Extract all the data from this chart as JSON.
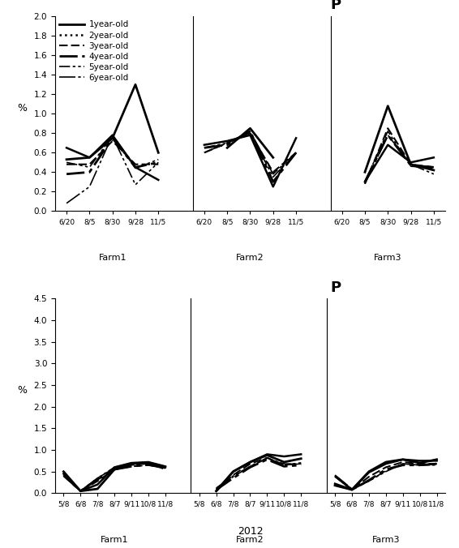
{
  "top_chart": {
    "title": "P",
    "ylabel": "%",
    "ylim": [
      0,
      2.0
    ],
    "yticks": [
      0,
      0.2,
      0.4,
      0.6,
      0.8,
      1.0,
      1.2,
      1.4,
      1.6,
      1.8,
      2.0
    ],
    "farms": [
      "Farm1",
      "Farm2",
      "Farm3"
    ],
    "xtick_labels": [
      "6/20",
      "8/5",
      "8/30",
      "9/28",
      "11/5"
    ],
    "series": [
      {
        "label": "1year-old",
        "farm1": [
          0.53,
          0.55,
          0.75,
          1.3,
          0.6
        ],
        "farm2": [
          null,
          0.65,
          0.85,
          0.55,
          null
        ],
        "farm3": [
          null,
          0.4,
          1.08,
          0.48,
          0.42
        ]
      },
      {
        "label": "2year-old",
        "farm1": [
          0.65,
          0.55,
          0.78,
          0.45,
          0.32
        ],
        "farm2": [
          0.68,
          0.72,
          0.78,
          0.25,
          0.75
        ],
        "farm3": [
          null,
          0.3,
          0.68,
          0.5,
          0.55
        ]
      },
      {
        "label": "3year-old",
        "farm1": [
          0.48,
          0.48,
          0.72,
          0.48,
          0.48
        ],
        "farm2": [
          0.6,
          0.7,
          0.8,
          0.4,
          0.6
        ],
        "farm3": [
          null,
          0.28,
          0.85,
          0.48,
          0.45
        ]
      },
      {
        "label": "4year-old",
        "farm1": [
          0.38,
          0.4,
          0.75,
          0.45,
          0.5
        ],
        "farm2": [
          0.65,
          0.68,
          0.82,
          0.3,
          0.6
        ],
        "farm3": [
          null,
          0.3,
          0.78,
          0.47,
          0.45
        ]
      },
      {
        "label": "5year-old",
        "farm1": [
          0.5,
          0.45,
          0.77,
          0.27,
          0.5
        ],
        "farm2": [
          0.65,
          0.7,
          0.8,
          0.35,
          0.6
        ],
        "farm3": [
          null,
          0.3,
          0.82,
          0.46,
          0.44
        ]
      },
      {
        "label": "6year-old",
        "farm1": [
          0.08,
          0.25,
          0.78,
          0.44,
          0.53
        ],
        "farm2": [
          0.6,
          0.7,
          0.82,
          0.38,
          0.6
        ],
        "farm3": [
          null,
          0.28,
          0.78,
          0.48,
          0.38
        ]
      }
    ]
  },
  "bottom_chart": {
    "title": "P",
    "ylabel": "%",
    "xlabel": "2012",
    "ylim": [
      0,
      4.5
    ],
    "yticks": [
      0,
      0.5,
      1.0,
      1.5,
      2.0,
      2.5,
      3.0,
      3.5,
      4.0,
      4.5
    ],
    "farms": [
      "Farm1",
      "Farm2",
      "Farm3"
    ],
    "xtick_labels": [
      "5/8",
      "6/8",
      "7/8",
      "8/7",
      "9/11",
      "10/8",
      "11/8"
    ],
    "series": [
      {
        "label": "1year-old",
        "farm1": [
          0.5,
          0.05,
          0.1,
          0.55,
          0.68,
          0.7,
          0.6
        ],
        "farm2": [
          null,
          0.05,
          0.5,
          0.72,
          0.88,
          0.72,
          0.8
        ],
        "farm3": [
          0.18,
          0.08,
          0.5,
          0.72,
          0.78,
          0.7,
          0.78
        ]
      },
      {
        "label": "2year-old",
        "farm1": [
          0.45,
          0.05,
          0.2,
          0.6,
          0.7,
          0.72,
          0.62
        ],
        "farm2": [
          null,
          0.05,
          0.5,
          0.72,
          0.9,
          0.85,
          0.9
        ],
        "farm3": [
          0.22,
          0.08,
          0.48,
          0.68,
          0.78,
          0.75,
          0.75
        ]
      },
      {
        "label": "3year-old",
        "farm1": [
          0.4,
          0.05,
          0.28,
          0.55,
          0.62,
          0.65,
          0.58
        ],
        "farm2": [
          null,
          0.05,
          0.42,
          0.68,
          0.82,
          0.65,
          0.7
        ],
        "farm3": [
          0.4,
          0.08,
          0.38,
          0.6,
          0.72,
          0.68,
          0.68
        ]
      },
      {
        "label": "4year-old",
        "farm1": [
          0.42,
          0.05,
          0.32,
          0.55,
          0.62,
          0.66,
          0.58
        ],
        "farm2": [
          null,
          0.08,
          0.35,
          0.6,
          0.78,
          0.62,
          0.65
        ],
        "farm3": [
          0.4,
          0.08,
          0.3,
          0.55,
          0.65,
          0.65,
          0.68
        ]
      },
      {
        "label": "5year-old",
        "farm1": [
          0.4,
          0.05,
          0.35,
          0.58,
          0.65,
          0.68,
          0.55
        ],
        "farm2": [
          null,
          0.1,
          0.38,
          0.62,
          0.8,
          0.68,
          0.68
        ],
        "farm3": [
          0.38,
          0.08,
          0.28,
          0.52,
          0.68,
          0.65,
          0.68
        ]
      },
      {
        "label": "6year-old",
        "farm1": [
          0.48,
          0.05,
          0.35,
          0.6,
          0.68,
          0.68,
          0.58
        ],
        "farm2": [
          null,
          0.12,
          0.4,
          0.62,
          0.82,
          0.65,
          0.68
        ],
        "farm3": [
          0.42,
          0.1,
          0.28,
          0.5,
          0.68,
          0.65,
          0.65
        ]
      }
    ]
  }
}
